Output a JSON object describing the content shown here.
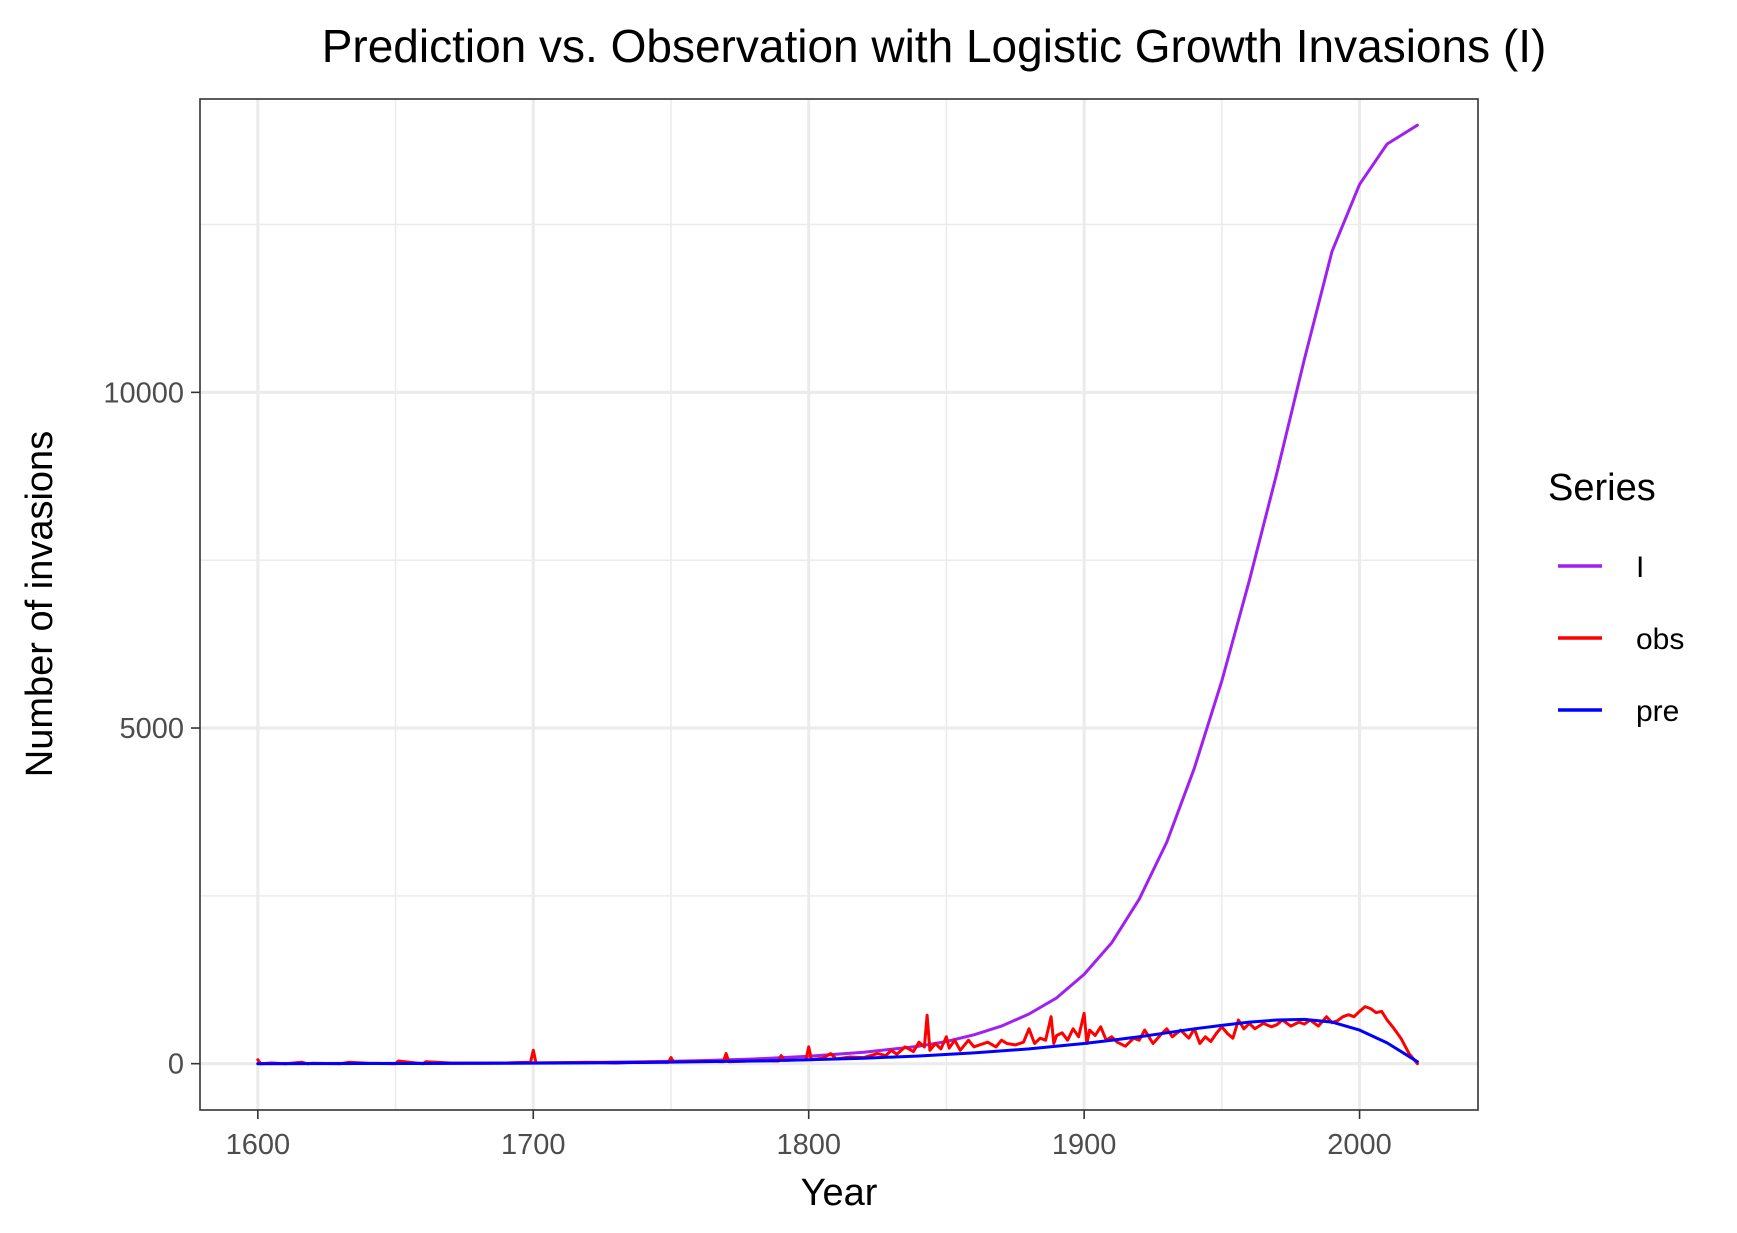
{
  "chart_data": {
    "type": "line",
    "title": "Prediction vs. Observation with Logistic Growth Invasions (I)",
    "xlabel": "Year",
    "ylabel": "Number of invasions",
    "xlim": [
      1579,
      2043
    ],
    "ylim": [
      -690,
      14370
    ],
    "x_ticks": [
      1600,
      1700,
      1800,
      1900,
      2000
    ],
    "x_tick_labels": [
      "1600",
      "1700",
      "1800",
      "1900",
      "2000"
    ],
    "y_ticks": [
      0,
      5000,
      10000
    ],
    "y_tick_labels": [
      "0",
      "5000",
      "10000"
    ],
    "grid": true,
    "legend": {
      "title": "Series",
      "position": "right",
      "entries": [
        {
          "label": "I",
          "color": "#a020f0"
        },
        {
          "label": "obs",
          "color": "#ff0000"
        },
        {
          "label": "pre",
          "color": "#0000ff"
        }
      ]
    },
    "series": [
      {
        "name": "I",
        "color": "#a020f0",
        "x": [
          1600,
          1620,
          1640,
          1660,
          1680,
          1700,
          1720,
          1740,
          1760,
          1780,
          1800,
          1820,
          1840,
          1850,
          1860,
          1870,
          1880,
          1890,
          1900,
          1910,
          1920,
          1930,
          1940,
          1950,
          1960,
          1970,
          1980,
          1990,
          2000,
          2010,
          2021
        ],
        "y": [
          2,
          3,
          4,
          6,
          8,
          12,
          18,
          28,
          45,
          70,
          110,
          170,
          260,
          330,
          430,
          560,
          740,
          980,
          1330,
          1800,
          2450,
          3300,
          4400,
          5700,
          7200,
          8800,
          10500,
          12100,
          13100,
          13700,
          13980
        ]
      },
      {
        "name": "obs",
        "color": "#ff0000",
        "x": [
          1600,
          1601,
          1605,
          1610,
          1616,
          1618,
          1620,
          1630,
          1633,
          1640,
          1650,
          1651,
          1660,
          1661,
          1670,
          1680,
          1690,
          1699,
          1700,
          1701,
          1710,
          1720,
          1730,
          1740,
          1749,
          1750,
          1751,
          1760,
          1769,
          1770,
          1771,
          1780,
          1789,
          1790,
          1791,
          1799,
          1800,
          1801,
          1805,
          1808,
          1810,
          1815,
          1820,
          1825,
          1828,
          1830,
          1832,
          1835,
          1838,
          1840,
          1842,
          1843,
          1844,
          1846,
          1848,
          1850,
          1851,
          1853,
          1855,
          1858,
          1860,
          1862,
          1865,
          1868,
          1870,
          1872,
          1875,
          1878,
          1880,
          1882,
          1884,
          1886,
          1888,
          1889,
          1890,
          1892,
          1894,
          1896,
          1898,
          1900,
          1901,
          1902,
          1904,
          1906,
          1908,
          1910,
          1912,
          1915,
          1918,
          1920,
          1922,
          1925,
          1928,
          1930,
          1932,
          1935,
          1938,
          1940,
          1942,
          1944,
          1946,
          1948,
          1950,
          1952,
          1954,
          1956,
          1958,
          1960,
          1962,
          1965,
          1968,
          1970,
          1972,
          1975,
          1978,
          1980,
          1982,
          1985,
          1988,
          1990,
          1992,
          1994,
          1996,
          1998,
          2000,
          2002,
          2004,
          2006,
          2008,
          2010,
          2012,
          2015,
          2018,
          2021
        ],
        "y": [
          60,
          0,
          10,
          0,
          20,
          0,
          5,
          0,
          20,
          5,
          0,
          40,
          0,
          30,
          10,
          5,
          10,
          20,
          200,
          10,
          15,
          20,
          10,
          25,
          20,
          90,
          25,
          40,
          30,
          150,
          30,
          45,
          40,
          120,
          50,
          60,
          250,
          60,
          80,
          150,
          70,
          100,
          90,
          150,
          120,
          200,
          140,
          250,
          180,
          320,
          250,
          720,
          200,
          300,
          220,
          400,
          230,
          350,
          200,
          350,
          250,
          280,
          320,
          250,
          350,
          300,
          280,
          320,
          520,
          300,
          380,
          350,
          700,
          300,
          420,
          460,
          350,
          520,
          400,
          750,
          300,
          500,
          420,
          550,
          350,
          400,
          320,
          260,
          380,
          350,
          500,
          300,
          440,
          520,
          400,
          500,
          380,
          520,
          300,
          400,
          330,
          450,
          550,
          450,
          380,
          650,
          520,
          600,
          520,
          600,
          550,
          580,
          650,
          560,
          620,
          590,
          650,
          560,
          700,
          610,
          640,
          700,
          730,
          700,
          780,
          850,
          820,
          760,
          780,
          650,
          550,
          380,
          150,
          0
        ]
      },
      {
        "name": "pre",
        "color": "#0000ff",
        "x": [
          1600,
          1620,
          1640,
          1660,
          1680,
          1700,
          1720,
          1740,
          1760,
          1780,
          1800,
          1820,
          1840,
          1860,
          1880,
          1900,
          1910,
          1920,
          1930,
          1940,
          1950,
          1960,
          1970,
          1980,
          1990,
          2000,
          2010,
          2021
        ],
        "y": [
          0,
          1,
          2,
          3,
          5,
          8,
          12,
          18,
          28,
          40,
          58,
          82,
          115,
          160,
          220,
          300,
          350,
          400,
          460,
          520,
          570,
          620,
          650,
          660,
          620,
          500,
          310,
          30
        ]
      }
    ]
  }
}
